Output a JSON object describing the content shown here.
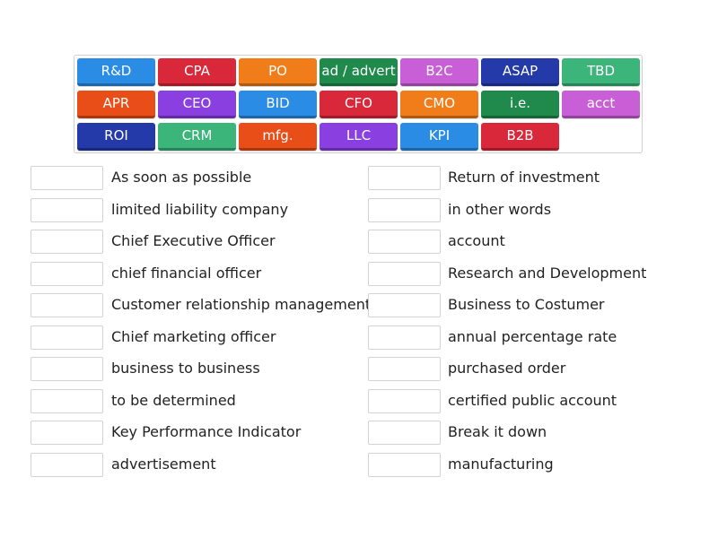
{
  "tiles": [
    {
      "label": "R&D",
      "color": "#2b8ce6"
    },
    {
      "label": "CPA",
      "color": "#d9283a"
    },
    {
      "label": "PO",
      "color": "#f07d1a"
    },
    {
      "label": "ad / advert",
      "color": "#1f8a4c"
    },
    {
      "label": "B2C",
      "color": "#c85fd6"
    },
    {
      "label": "ASAP",
      "color": "#233aa8"
    },
    {
      "label": "TBD",
      "color": "#3bb57a"
    },
    {
      "label": "APR",
      "color": "#ea4e18"
    },
    {
      "label": "CEO",
      "color": "#8a3fe0"
    },
    {
      "label": "BID",
      "color": "#2b8ce6"
    },
    {
      "label": "CFO",
      "color": "#d9283a"
    },
    {
      "label": "CMO",
      "color": "#f07d1a"
    },
    {
      "label": "i.e.",
      "color": "#1f8a4c"
    },
    {
      "label": "acct",
      "color": "#c85fd6"
    },
    {
      "label": "ROI",
      "color": "#233aa8"
    },
    {
      "label": "CRM",
      "color": "#3bb57a"
    },
    {
      "label": "mfg.",
      "color": "#ea4e18"
    },
    {
      "label": "LLC",
      "color": "#8a3fe0"
    },
    {
      "label": "KPI",
      "color": "#2b8ce6"
    },
    {
      "label": "B2B",
      "color": "#d9283a"
    }
  ],
  "left_descriptions": [
    "As soon as possible",
    "limited liability company",
    "Chief Executive Officer",
    "chief financial officer",
    "Customer relationship management",
    "Chief marketing officer",
    "business to business",
    "to be determined",
    "Key Performance Indicator",
    "advertisement"
  ],
  "right_descriptions": [
    "Return of investment",
    "in other words",
    "account",
    "Research and Development",
    "Business to Costumer",
    "annual percentage rate",
    "purchased order",
    "certified public account",
    "Break it down",
    "manufacturing"
  ]
}
